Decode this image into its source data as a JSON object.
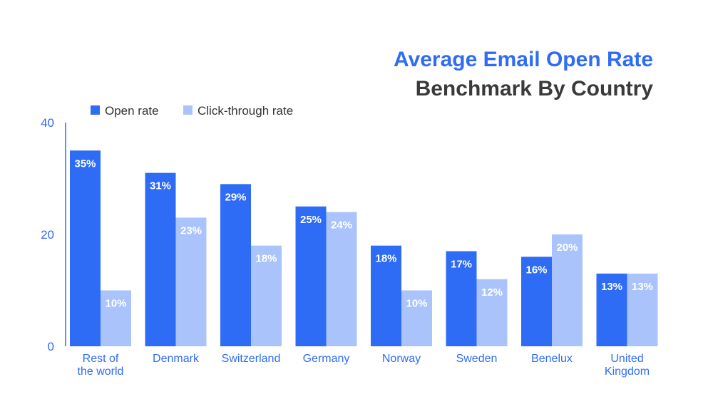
{
  "title": "Average Email Open Rate",
  "subtitle": "Benchmark By Country",
  "colors": {
    "title": "#2f6cf6",
    "subtitle": "#3a3a3a",
    "open": "#2f6cf6",
    "click": "#aac4fb",
    "axis": "#2f6cf6"
  },
  "chart_data": {
    "type": "bar",
    "title": "Average Email Open Rate",
    "subtitle": "Benchmark By Country",
    "xlabel": "",
    "ylabel": "",
    "ylim": [
      0,
      40
    ],
    "yticks": [
      "0",
      "20",
      "40"
    ],
    "grid": false,
    "legend_position": "top-left",
    "categories": [
      [
        "Rest of",
        "the world"
      ],
      [
        "Denmark"
      ],
      [
        "Switzerland"
      ],
      [
        "Germany"
      ],
      [
        "Norway"
      ],
      [
        "Sweden"
      ],
      [
        "Benelux"
      ],
      [
        "United",
        "Kingdom"
      ]
    ],
    "series": [
      {
        "name": "Open rate",
        "color": "#2f6cf6",
        "values": [
          35,
          31,
          29,
          25,
          18,
          17,
          16,
          13
        ],
        "labels": [
          "35%",
          "31%",
          "29%",
          "25%",
          "18%",
          "17%",
          "16%",
          "13%"
        ]
      },
      {
        "name": "Click-through rate",
        "color": "#aac4fb",
        "values": [
          10,
          23,
          18,
          24,
          10,
          12,
          20,
          13
        ],
        "labels": [
          "10%",
          "23%",
          "18%",
          "24%",
          "10%",
          "12%",
          "20%",
          "13%"
        ]
      }
    ]
  }
}
